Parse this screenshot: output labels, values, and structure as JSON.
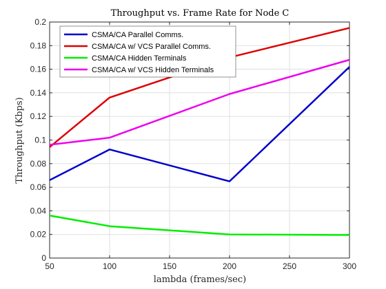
{
  "chart_data": {
    "type": "line",
    "title": "Throughput vs. Frame Rate for Node C",
    "xlabel": "lambda (frames/sec)",
    "ylabel": "Throughput (Kbps)",
    "xlim": [
      50,
      300
    ],
    "ylim": [
      0,
      0.2
    ],
    "xticks": [
      50,
      100,
      150,
      200,
      250,
      300
    ],
    "xtick_labels": [
      "50",
      "100",
      "150",
      "200",
      "250",
      "300"
    ],
    "yticks": [
      0,
      0.02,
      0.04,
      0.06,
      0.08,
      0.1,
      0.12,
      0.14,
      0.16,
      0.18,
      0.2
    ],
    "ytick_labels": [
      "0",
      "0.02",
      "0.04",
      "0.06",
      "0.08",
      "0.1",
      "0.12",
      "0.14",
      "0.16",
      "0.18",
      "0.2"
    ],
    "grid": true,
    "legend_position": "top-left",
    "x": [
      50,
      100,
      200,
      300
    ],
    "series": [
      {
        "name": "CSMA/CA Parallel Comms.",
        "color": "#0000CC",
        "values": [
          0.066,
          0.092,
          0.065,
          0.162
        ]
      },
      {
        "name": "CSMA/CA w/ VCS Parallel Comms.",
        "color": "#DD0000",
        "values": [
          0.094,
          0.136,
          0.17,
          0.195
        ]
      },
      {
        "name": "CSMA/CA Hidden Terminals",
        "color": "#00EE00",
        "values": [
          0.036,
          0.027,
          0.02,
          0.0195
        ]
      },
      {
        "name": "CSMA/CA w/ VCS Hidden Terminals",
        "color": "#EE00EE",
        "values": [
          0.096,
          0.102,
          0.139,
          0.168
        ]
      }
    ]
  }
}
